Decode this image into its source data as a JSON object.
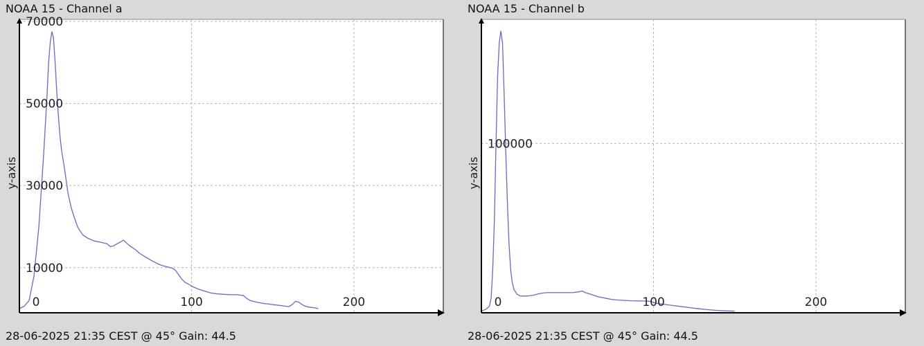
{
  "chart_data": [
    {
      "type": "line",
      "title": "NOAA 15 - Channel a",
      "ylabel": "y-axis",
      "xlabel": "",
      "footer": "28-06-2025 21:35 CEST @ 45° Gain: 44.5",
      "xlim": [
        -6,
        255
      ],
      "ylim": [
        -1000,
        70500
      ],
      "xticks": [
        0,
        100,
        200
      ],
      "yticks": [
        10000,
        30000,
        50000,
        70000
      ],
      "ytick_labels": [
        "10000",
        "30000",
        "50000",
        "70000"
      ],
      "grid": true,
      "series": [
        {
          "color": "#6666dd",
          "x": [
            -6,
            -3,
            0,
            3,
            6,
            9,
            11,
            12,
            13,
            14,
            15,
            16,
            17,
            18,
            19,
            20,
            22,
            24,
            26,
            28,
            30,
            33,
            36,
            40,
            44,
            48,
            50,
            52,
            54,
            56,
            58,
            60,
            62,
            64,
            66,
            68,
            70,
            72,
            75,
            78,
            80,
            82,
            84,
            86,
            88,
            90,
            92,
            94,
            96,
            98,
            100,
            104,
            108,
            112,
            116,
            120,
            124,
            128,
            132,
            134,
            136,
            140,
            144,
            148,
            152,
            156,
            160,
            162,
            164,
            166,
            168,
            170,
            172,
            174,
            176,
            178
          ],
          "y": [
            0,
            600,
            2000,
            8000,
            20000,
            38000,
            52000,
            60000,
            65000,
            67500,
            66000,
            60000,
            53000,
            47000,
            42000,
            38500,
            33500,
            28000,
            24500,
            22000,
            19800,
            18000,
            17200,
            16500,
            16200,
            15800,
            15100,
            15300,
            15800,
            16200,
            16700,
            16000,
            15300,
            14800,
            14200,
            13500,
            13000,
            12500,
            11800,
            11200,
            10800,
            10500,
            10300,
            10100,
            9900,
            9400,
            8300,
            7200,
            6400,
            6000,
            5500,
            4800,
            4300,
            3800,
            3600,
            3500,
            3400,
            3400,
            3200,
            2500,
            2000,
            1600,
            1300,
            1100,
            900,
            700,
            500,
            1000,
            1800,
            1600,
            1000,
            600,
            400,
            300,
            200,
            0
          ]
        }
      ]
    },
    {
      "type": "line",
      "title": "NOAA 15 - Channel b",
      "ylabel": "y-axis",
      "xlabel": "",
      "footer": "28-06-2025 21:35 CEST @ 45° Gain: 44.5",
      "xlim": [
        -6,
        255
      ],
      "ylim": [
        -1000,
        174000
      ],
      "xticks": [
        0,
        100,
        200
      ],
      "yticks": [
        100000
      ],
      "ytick_labels": [
        "100000"
      ],
      "grid": true,
      "series": [
        {
          "color": "#6666dd",
          "x": [
            -6,
            -3,
            -1,
            0,
            1,
            2,
            3,
            4,
            5,
            6,
            7,
            8,
            9,
            10,
            11,
            12,
            13,
            14,
            16,
            18,
            22,
            26,
            30,
            34,
            38,
            42,
            46,
            50,
            54,
            56,
            58,
            62,
            66,
            70,
            74,
            78,
            82,
            86,
            90,
            94,
            98,
            102,
            106,
            110,
            114,
            118,
            122,
            126,
            130,
            134,
            138,
            142,
            146,
            150
          ],
          "y": [
            0,
            1200,
            3000,
            8000,
            25000,
            55000,
            100000,
            140000,
            160000,
            167000,
            160000,
            130000,
            95000,
            65000,
            40000,
            25000,
            17000,
            13000,
            10000,
            9000,
            9000,
            9500,
            10500,
            11000,
            11000,
            11000,
            11000,
            11000,
            11500,
            12000,
            11000,
            9800,
            8500,
            7800,
            7000,
            6600,
            6400,
            6200,
            6100,
            6000,
            5800,
            4600,
            4100,
            3600,
            3100,
            2600,
            2100,
            1600,
            1200,
            800,
            500,
            300,
            100,
            0
          ]
        }
      ]
    }
  ],
  "colors": {
    "background": "#d9d9d9",
    "plot_area": "#ffffff",
    "line": "#6666dd",
    "grid": "#b4b4b4",
    "axis": "#000000"
  }
}
